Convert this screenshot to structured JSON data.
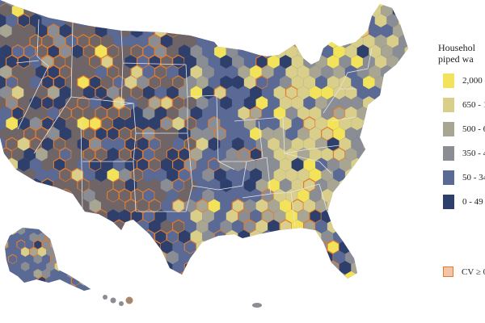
{
  "legend": {
    "title_line1": "Househol",
    "title_line2": "piped wa",
    "classes": [
      {
        "label": "2,000 -",
        "color": "#f2e35a"
      },
      {
        "label": "650 - 1",
        "color": "#d9cf8a"
      },
      {
        "label": "500 - 6",
        "color": "#a9a593"
      },
      {
        "label": "350 - 4",
        "color": "#8a8d93"
      },
      {
        "label": "50 - 34",
        "color": "#5b6a95"
      },
      {
        "label": "0 - 49",
        "color": "#2e3f6b"
      }
    ],
    "cv_label": "CV ≥ 0",
    "cv_outline_color": "#e07b2e",
    "cv_fill_color": "#f3c4a8"
  },
  "map_colors": {
    "land_base": "#5b6a95",
    "west_brown": "#6f6466",
    "east_light": "#d9cf8a",
    "state_border": "#e6e6e6",
    "cv_outline": "#e07b2e"
  }
}
